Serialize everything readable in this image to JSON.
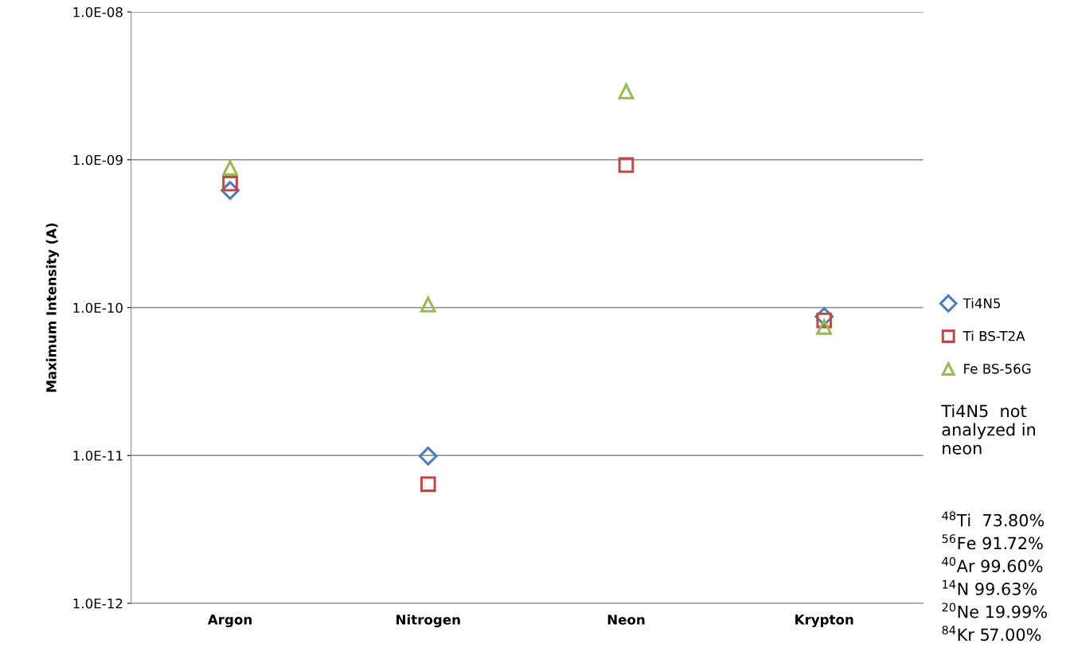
{
  "chart_data": {
    "type": "scatter",
    "ylabel": "Maximum Intensity (A)",
    "categories": [
      "Argon",
      "Nitrogen",
      "Neon",
      "Krypton"
    ],
    "series": [
      {
        "name": "Ti4N5",
        "color": "#4a7ebb",
        "marker": "diamond",
        "values": [
          6.2e-10,
          9.9e-12,
          null,
          8.7e-11
        ]
      },
      {
        "name": "Ti BS-T2A",
        "color": "#be4b48",
        "marker": "square",
        "values": [
          6.9e-10,
          6.4e-12,
          9.2e-10,
          8.2e-11
        ]
      },
      {
        "name": "Fe BS-56G",
        "color": "#98b954",
        "marker": "triangle",
        "values": [
          8.8e-10,
          1.05e-10,
          2.9e-09,
          7.4e-11
        ]
      }
    ],
    "log": "y",
    "ylim": [
      1e-12,
      1e-08
    ],
    "yticks": [
      {
        "value": 1e-12,
        "label": "1.0E-12"
      },
      {
        "value": 1e-11,
        "label": "1.0E-11"
      },
      {
        "value": 1e-10,
        "label": "1.0E-10"
      },
      {
        "value": 1e-09,
        "label": "1.0E-09"
      },
      {
        "value": 1e-08,
        "label": "1.0E-08"
      }
    ],
    "grid": "y",
    "legend": "right",
    "annotations": [
      "Ti4N5  not analyzed in neon",
      "$^{48}$Ti  73.80%",
      "$^{56}$Fe 91.72%",
      "$^{40}$Ar 99.60%",
      "$^{14}$N 99.63%",
      "$^{20}$Ne 19.99%",
      "$^{84}$Kr 57.00%"
    ]
  }
}
